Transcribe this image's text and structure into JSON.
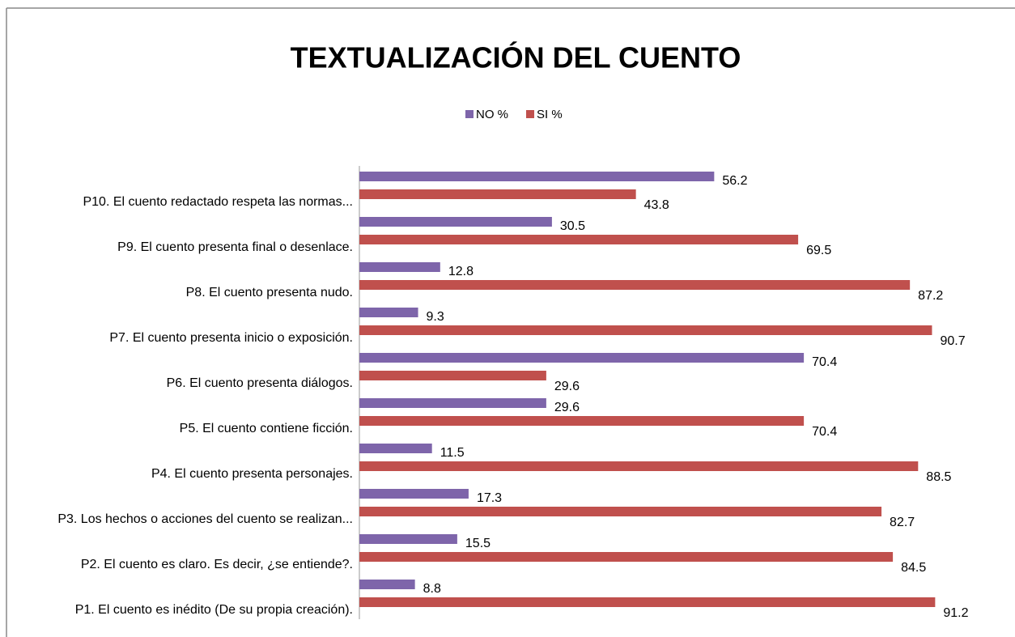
{
  "chart_data": {
    "type": "bar",
    "orientation": "horizontal",
    "title": "TEXTUALIZACIÓN DEL CUENTO",
    "categories": [
      "P1. El cuento es inédito (De su propia creación).",
      "P2. El cuento es claro. Es decir, ¿se entiende?.",
      "P3. Los hechos o acciones del cuento se realizan...",
      "P4. El cuento presenta personajes.",
      "P5. El cuento contiene ficción.",
      "P6. El cuento presenta diálogos.",
      "P7. El cuento presenta inicio o exposición.",
      "P8. El cuento presenta nudo.",
      "P9. El cuento presenta final o desenlace.",
      "P10. El cuento redactado respeta las normas..."
    ],
    "series": [
      {
        "name": "NO %",
        "color": "#7e65aa",
        "values": [
          8.8,
          15.5,
          17.3,
          11.5,
          29.6,
          70.4,
          9.3,
          12.8,
          30.5,
          56.2
        ]
      },
      {
        "name": "SI %",
        "color": "#c0504d",
        "values": [
          91.2,
          84.5,
          82.7,
          88.5,
          70.4,
          29.6,
          90.7,
          87.2,
          69.5,
          43.8
        ]
      }
    ],
    "xlim": [
      0,
      100
    ],
    "legend": "top"
  }
}
